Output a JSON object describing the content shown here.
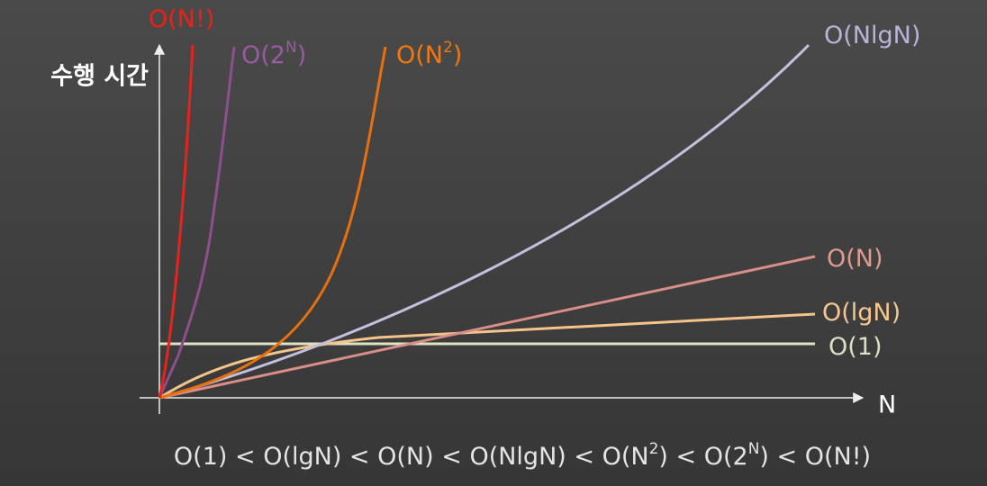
{
  "axes": {
    "y_label": "수행 시간",
    "x_label": "N"
  },
  "curves": [
    {
      "label": [
        "O(N!)"
      ]
    },
    {
      "label": [
        "O(2",
        "N",
        ")"
      ]
    },
    {
      "label": [
        "O(N",
        "2",
        ")"
      ]
    },
    {
      "label": [
        "O(NlgN)"
      ]
    },
    {
      "label": [
        "O(N)"
      ]
    },
    {
      "label": [
        "O(lgN)"
      ]
    },
    {
      "label": [
        "O(1)"
      ]
    }
  ],
  "formula": [
    "O(1) < O(lgN) < O(N) < O(NlgN) < O(N",
    "2",
    ") < O(2",
    "N",
    ") < O(N!)"
  ]
}
